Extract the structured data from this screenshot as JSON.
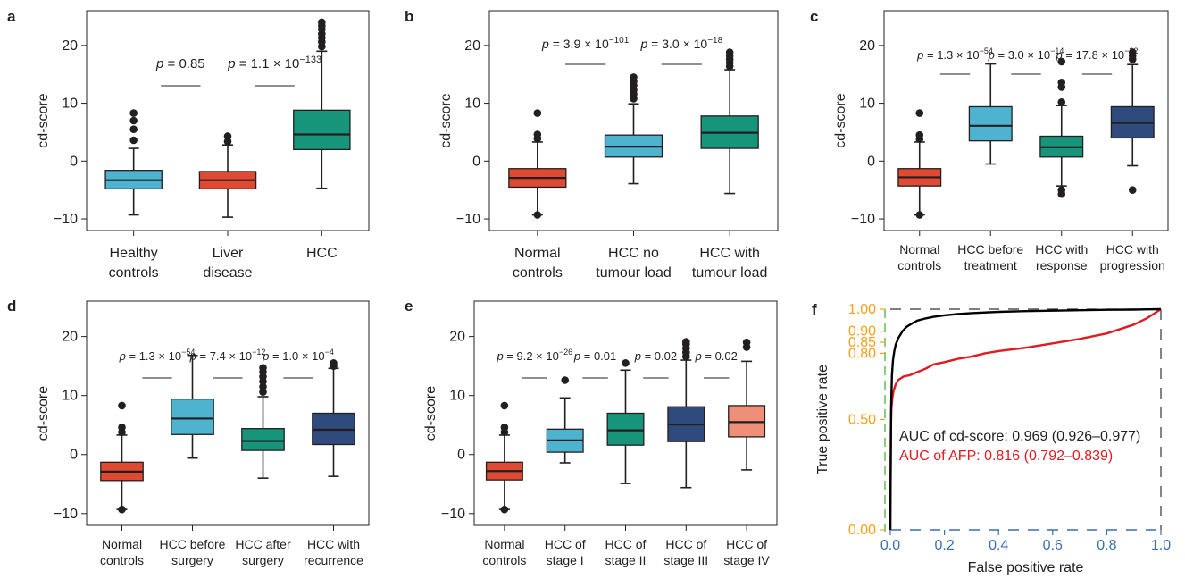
{
  "colors": {
    "red": "#e04a32",
    "light_blue": "#4db3cf",
    "green": "#17957a",
    "navy": "#2f4a7c",
    "salmon": "#ef8f78",
    "roc_black": "#000000",
    "roc_red": "#e11b22",
    "roc_axis_orange": "#f7a11a",
    "roc_axis_blue": "#3a6fb0",
    "roc_axis_green": "#57b947",
    "axis": "#231f20"
  },
  "chart_data": [
    {
      "panel": "a",
      "type": "box",
      "ylabel": "cd-score",
      "ylim": [
        -12,
        26
      ],
      "yticks": [
        -10,
        0,
        10,
        20
      ],
      "categories": [
        [
          "Healthy",
          "controls"
        ],
        [
          "Liver",
          "disease"
        ],
        [
          "HCC"
        ]
      ],
      "boxes": [
        {
          "q1": -4.8,
          "median": -3.3,
          "q3": -1.6,
          "whisker_low": -9.3,
          "whisker_high": 2.2,
          "outliers": [
            3.6,
            5.5,
            7.0,
            8.3
          ],
          "color": "light_blue"
        },
        {
          "q1": -4.8,
          "median": -3.3,
          "q3": -1.8,
          "whisker_low": -9.7,
          "whisker_high": 2.8,
          "outliers": [
            3.4,
            4.3
          ],
          "color": "red"
        },
        {
          "q1": 2.0,
          "median": 4.6,
          "q3": 8.8,
          "whisker_low": -4.7,
          "whisker_high": 19.0,
          "outliers": [
            19.8,
            20.6,
            21.3,
            22.0,
            22.8,
            23.4,
            24.0
          ],
          "color": "green"
        }
      ],
      "annotations": [
        {
          "text": "p = 0.85",
          "p": "p",
          "eq": " = ",
          "base": "0.85",
          "exp": "",
          "from": 1,
          "to": 2
        },
        {
          "text": "p = 1.1 × 10−133",
          "p": "p",
          "eq": " = ",
          "base": "1.1 × 10",
          "exp": "−133",
          "from": 2,
          "to": 3
        }
      ]
    },
    {
      "panel": "b",
      "type": "box",
      "ylabel": "cd-score",
      "ylim": [
        -12,
        26
      ],
      "yticks": [
        -10,
        0,
        10,
        20
      ],
      "categories": [
        [
          "Normal",
          "controls"
        ],
        [
          "HCC no",
          "tumour load"
        ],
        [
          "HCC with",
          "tumour load"
        ]
      ],
      "boxes": [
        {
          "q1": -4.5,
          "median": -2.9,
          "q3": -1.3,
          "whisker_low": -9.3,
          "whisker_high": 3.3,
          "outliers": [
            3.9,
            4.6,
            8.3,
            -9.3
          ],
          "color": "red"
        },
        {
          "q1": 0.7,
          "median": 2.5,
          "q3": 4.5,
          "whisker_low": -3.9,
          "whisker_high": 9.9,
          "outliers": [
            10.8,
            11.6,
            12.3,
            13.1,
            13.8,
            14.5
          ],
          "color": "light_blue"
        },
        {
          "q1": 2.2,
          "median": 4.9,
          "q3": 7.8,
          "whisker_low": -5.6,
          "whisker_high": 15.8,
          "outliers": [
            16.4,
            17.0,
            17.6,
            18.2,
            18.8
          ],
          "color": "green"
        }
      ],
      "annotations": [
        {
          "text": "p = 3.9 × 10−101",
          "p": "p",
          "eq": " = ",
          "base": "3.9 × 10",
          "exp": "−101",
          "from": 1,
          "to": 2
        },
        {
          "text": "p = 3.0 × 10−18",
          "p": "p",
          "eq": " = ",
          "base": "3.0 × 10",
          "exp": "−18",
          "from": 2,
          "to": 3
        }
      ]
    },
    {
      "panel": "c",
      "type": "box",
      "ylabel": "cd-score",
      "ylim": [
        -12,
        26
      ],
      "yticks": [
        -10,
        0,
        10,
        20
      ],
      "categories": [
        [
          "Normal",
          "controls"
        ],
        [
          "HCC before",
          "treatment"
        ],
        [
          "HCC with",
          "response"
        ],
        [
          "HCC with",
          "progression"
        ]
      ],
      "boxes": [
        {
          "q1": -4.3,
          "median": -2.8,
          "q3": -1.3,
          "whisker_low": -9.3,
          "whisker_high": 3.3,
          "outliers": [
            3.8,
            4.5,
            8.3,
            -9.3
          ],
          "color": "red"
        },
        {
          "q1": 3.5,
          "median": 6.1,
          "q3": 9.4,
          "whisker_low": -0.5,
          "whisker_high": 16.8,
          "outliers": [],
          "color": "light_blue"
        },
        {
          "q1": 0.7,
          "median": 2.4,
          "q3": 4.3,
          "whisker_low": -4.3,
          "whisker_high": 9.6,
          "outliers": [
            10.2,
            12.8,
            13.6,
            17.2,
            -5.0,
            -5.7
          ],
          "color": "green"
        },
        {
          "q1": 4.0,
          "median": 6.6,
          "q3": 9.4,
          "whisker_low": -0.8,
          "whisker_high": 16.7,
          "outliers": [
            17.6,
            18.2,
            18.8,
            -5.0
          ],
          "color": "navy"
        }
      ],
      "annotations": [
        {
          "text": "p = 1.3 × 10−54",
          "p": "p",
          "eq": " = ",
          "base": "1.3 × 10",
          "exp": "−54",
          "from": 1,
          "to": 2
        },
        {
          "text": "p = 3.0 × 10−14",
          "p": "p",
          "eq": " = ",
          "base": "3.0 × 10",
          "exp": "−14",
          "from": 2,
          "to": 3
        },
        {
          "text": "p = 17.8 × 10−32",
          "p": "p",
          "eq": " = ",
          "base": "17.8 × 10",
          "exp": "−32",
          "from": 3,
          "to": 4
        }
      ]
    },
    {
      "panel": "d",
      "type": "box",
      "ylabel": "cd-score",
      "ylim": [
        -12,
        26
      ],
      "yticks": [
        -10,
        0,
        10,
        20
      ],
      "categories": [
        [
          "Normal",
          "controls"
        ],
        [
          "HCC before",
          "surgery"
        ],
        [
          "HCC after",
          "surgery"
        ],
        [
          "HCC with",
          "recurrence"
        ]
      ],
      "boxes": [
        {
          "q1": -4.4,
          "median": -2.9,
          "q3": -1.3,
          "whisker_low": -9.3,
          "whisker_high": 3.3,
          "outliers": [
            3.8,
            4.6,
            8.3,
            -9.3
          ],
          "color": "red"
        },
        {
          "q1": 3.4,
          "median": 6.1,
          "q3": 9.4,
          "whisker_low": -0.6,
          "whisker_high": 16.8,
          "outliers": [],
          "color": "light_blue"
        },
        {
          "q1": 0.7,
          "median": 2.3,
          "q3": 4.4,
          "whisker_low": -4.0,
          "whisker_high": 9.8,
          "outliers": [
            10.6,
            11.5,
            12.4,
            13.2,
            14.0,
            14.7
          ],
          "color": "green"
        },
        {
          "q1": 1.7,
          "median": 4.2,
          "q3": 7.0,
          "whisker_low": -3.7,
          "whisker_high": 14.6,
          "outliers": [
            15.0,
            15.5
          ],
          "color": "navy"
        }
      ],
      "annotations": [
        {
          "text": "p = 1.3 × 10−54",
          "p": "p",
          "eq": " = ",
          "base": "1.3 × 10",
          "exp": "−54",
          "from": 1,
          "to": 2
        },
        {
          "text": "p = 7.4 × 10−12",
          "p": "p",
          "eq": " = ",
          "base": "7.4 × 10",
          "exp": "−12",
          "from": 2,
          "to": 3
        },
        {
          "text": "p = 1.0 × 10−4",
          "p": "p",
          "eq": " = ",
          "base": "1.0 × 10",
          "exp": "−4",
          "from": 3,
          "to": 4
        }
      ]
    },
    {
      "panel": "e",
      "type": "box",
      "ylabel": "cd-score",
      "ylim": [
        -12,
        26
      ],
      "yticks": [
        -10,
        0,
        10,
        20
      ],
      "categories": [
        [
          "Normal",
          "controls"
        ],
        [
          "HCC of",
          "stage I"
        ],
        [
          "HCC of",
          "stage II"
        ],
        [
          "HCC of",
          "stage III"
        ],
        [
          "HCC of",
          "stage IV"
        ]
      ],
      "boxes": [
        {
          "q1": -4.3,
          "median": -2.8,
          "q3": -1.3,
          "whisker_low": -9.3,
          "whisker_high": 3.3,
          "outliers": [
            3.8,
            4.6,
            8.3,
            -9.3
          ],
          "color": "red"
        },
        {
          "q1": 0.4,
          "median": 2.4,
          "q3": 4.3,
          "whisker_low": -1.4,
          "whisker_high": 9.6,
          "outliers": [
            12.6
          ],
          "color": "light_blue"
        },
        {
          "q1": 1.6,
          "median": 4.1,
          "q3": 7.0,
          "whisker_low": -4.9,
          "whisker_high": 14.3,
          "outliers": [
            15.5
          ],
          "color": "green"
        },
        {
          "q1": 2.2,
          "median": 5.1,
          "q3": 8.1,
          "whisker_low": -5.6,
          "whisker_high": 16.0,
          "outliers": [
            16.6,
            17.3,
            18.0,
            18.7,
            19.1
          ],
          "color": "navy"
        },
        {
          "q1": 3.0,
          "median": 5.5,
          "q3": 8.3,
          "whisker_low": -2.6,
          "whisker_high": 15.8,
          "outliers": [
            18.2,
            19.0
          ],
          "color": "salmon"
        }
      ],
      "annotations": [
        {
          "text": "p = 9.2 × 10−26",
          "p": "p",
          "eq": " = ",
          "base": "9.2 × 10",
          "exp": "−26",
          "from": 1,
          "to": 2
        },
        {
          "text": "p = 0.01",
          "p": "p",
          "eq": " = ",
          "base": "0.01",
          "exp": "",
          "from": 2,
          "to": 3
        },
        {
          "text": "p = 0.02",
          "p": "p",
          "eq": " = ",
          "base": "0.02",
          "exp": "",
          "from": 3,
          "to": 4
        },
        {
          "text": "p = 0.02",
          "p": "p",
          "eq": " = ",
          "base": "0.02",
          "exp": "",
          "from": 4,
          "to": 5
        }
      ]
    },
    {
      "panel": "f",
      "type": "line",
      "xlabel": "False positive rate",
      "ylabel": "True positive rate",
      "xlim": [
        0,
        1
      ],
      "ylim": [
        0,
        1
      ],
      "xticks": [
        "0.0",
        "0.2",
        "0.4",
        "0.6",
        "0.8",
        "1.0"
      ],
      "yticks": [
        "0.00",
        "0.50",
        "0.80",
        "0.85",
        "0.90",
        "1.00"
      ],
      "series": [
        {
          "legend": "AUC of cd-score: 0.969 (0.926–0.977)",
          "color": "roc_black",
          "x": [
            0,
            0.003,
            0.006,
            0.01,
            0.015,
            0.02,
            0.03,
            0.045,
            0.06,
            0.08,
            0.1,
            0.13,
            0.16,
            0.2,
            0.25,
            0.3,
            0.4,
            0.5,
            0.6,
            0.7,
            0.8,
            0.9,
            0.95,
            1.0
          ],
          "y": [
            0,
            0.55,
            0.7,
            0.77,
            0.81,
            0.84,
            0.87,
            0.9,
            0.92,
            0.935,
            0.948,
            0.958,
            0.965,
            0.972,
            0.978,
            0.982,
            0.988,
            0.991,
            0.993,
            0.995,
            0.997,
            0.998,
            0.999,
            1.0
          ]
        },
        {
          "legend": "AUC of AFP: 0.816 (0.792–0.839)",
          "color": "roc_red",
          "x": [
            0,
            0.002,
            0.004,
            0.008,
            0.012,
            0.02,
            0.03,
            0.05,
            0.07,
            0.1,
            0.13,
            0.16,
            0.2,
            0.25,
            0.3,
            0.35,
            0.4,
            0.5,
            0.6,
            0.7,
            0.8,
            0.9,
            0.95,
            1.0
          ],
          "y": [
            0,
            0.45,
            0.55,
            0.6,
            0.63,
            0.66,
            0.68,
            0.695,
            0.7,
            0.715,
            0.73,
            0.75,
            0.76,
            0.775,
            0.785,
            0.8,
            0.81,
            0.825,
            0.845,
            0.865,
            0.89,
            0.93,
            0.96,
            1.0
          ]
        }
      ]
    }
  ]
}
